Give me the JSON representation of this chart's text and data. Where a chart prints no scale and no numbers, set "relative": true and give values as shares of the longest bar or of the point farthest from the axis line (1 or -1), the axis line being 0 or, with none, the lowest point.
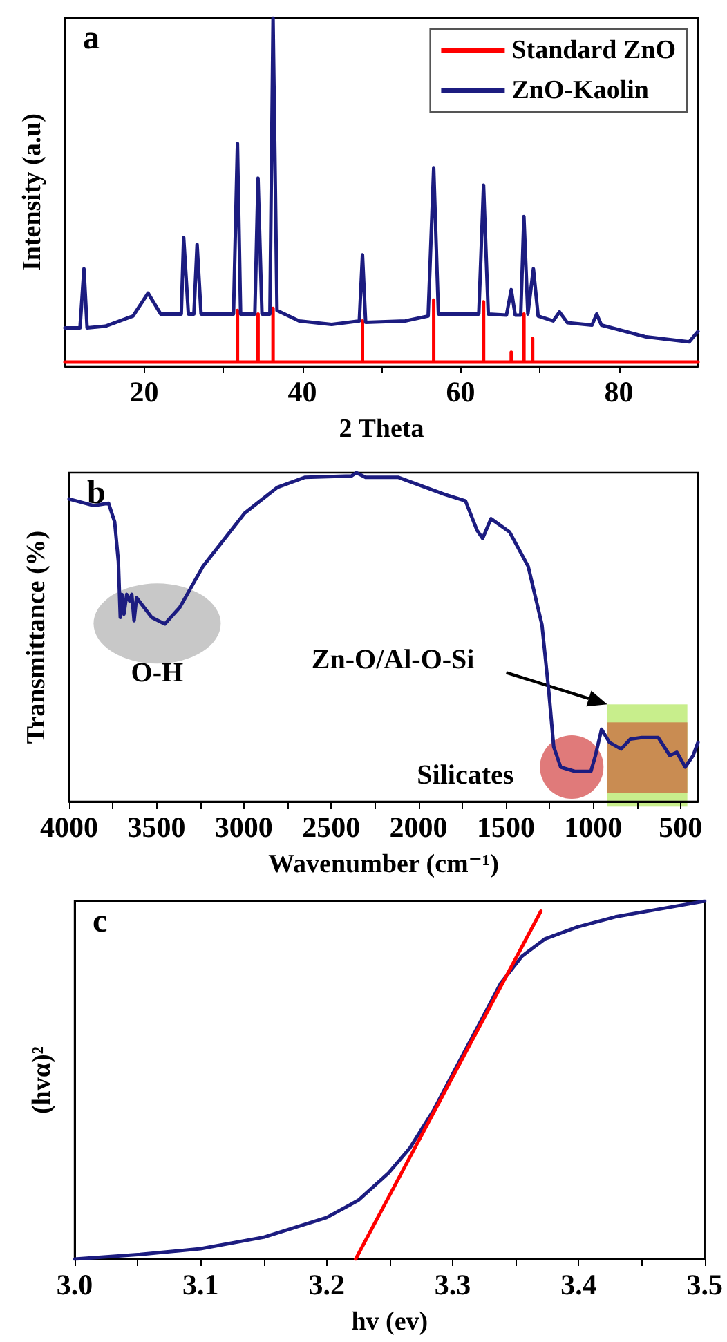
{
  "chart_data": [
    {
      "type": "line",
      "title": "a",
      "xlabel": "2 Theta",
      "ylabel": "Intensity (a.u)",
      "relative": true,
      "marker": "none",
      "legend": "top right",
      "xlim": [
        10,
        90
      ],
      "xticks": [
        {
          "value": 20,
          "label": "20"
        },
        {
          "value": 30,
          "label": null
        },
        {
          "value": 40,
          "label": "40"
        },
        {
          "value": 50,
          "label": null
        },
        {
          "value": 60,
          "label": "60"
        },
        {
          "value": 70,
          "label": null
        },
        {
          "value": 80,
          "label": "80"
        }
      ],
      "series": [
        {
          "name": "Standard ZnO",
          "color": "#ff0000",
          "x": [
            10,
            31.8,
            31.8,
            31.8,
            34.4,
            34.4,
            34.4,
            36.3,
            36.3,
            36.3,
            47.6,
            47.6,
            47.6,
            56.6,
            56.6,
            56.6,
            62.9,
            62.9,
            62.9,
            66.4,
            66.4,
            66.4,
            68.0,
            68.0,
            68.0,
            69.1,
            69.1,
            69.1,
            90
          ],
          "values": [
            0.012,
            0.012,
            0.16,
            0.012,
            0.012,
            0.15,
            0.012,
            0.012,
            0.166,
            0.012,
            0.012,
            0.13,
            0.012,
            0.012,
            0.19,
            0.012,
            0.012,
            0.185,
            0.012,
            0.012,
            0.04,
            0.012,
            0.012,
            0.15,
            0.012,
            0.012,
            0.08,
            0.012,
            0.012
          ]
        },
        {
          "name": "ZnO-Kaolin",
          "color": "#1c1c80",
          "x": [
            10,
            11.9,
            12.4,
            12.8,
            15.1,
            18.6,
            20.5,
            22.1,
            24.7,
            25.0,
            25.6,
            26.3,
            26.7,
            27.2,
            31.3,
            31.8,
            32.2,
            34.0,
            34.4,
            34.9,
            35.9,
            36.3,
            36.8,
            39.6,
            43.7,
            47.2,
            47.6,
            48.0,
            53.0,
            55.9,
            56.6,
            57.2,
            62.3,
            62.9,
            63.5,
            65.8,
            66.4,
            66.9,
            67.6,
            68.0,
            68.5,
            69.2,
            69.8,
            71.7,
            72.5,
            73.5,
            76.6,
            77.2,
            77.8,
            83.3,
            88.9,
            90
          ],
          "values": [
            0.11,
            0.11,
            0.28,
            0.11,
            0.115,
            0.144,
            0.21,
            0.15,
            0.15,
            0.37,
            0.15,
            0.15,
            0.35,
            0.15,
            0.15,
            0.64,
            0.15,
            0.15,
            0.54,
            0.15,
            0.15,
            1.0,
            0.16,
            0.13,
            0.12,
            0.13,
            0.32,
            0.126,
            0.13,
            0.144,
            0.57,
            0.15,
            0.15,
            0.52,
            0.15,
            0.147,
            0.22,
            0.147,
            0.147,
            0.43,
            0.15,
            0.28,
            0.144,
            0.13,
            0.156,
            0.125,
            0.118,
            0.15,
            0.118,
            0.085,
            0.07,
            0.1
          ]
        }
      ]
    },
    {
      "type": "line",
      "title": "b",
      "xlabel": "Wavenumber (cm⁻¹)",
      "ylabel": "Transmittance (%)",
      "relative": true,
      "marker": "none",
      "xlim": [
        4000,
        400
      ],
      "xticks": [
        4000,
        {
          "value": 3750,
          "label": null
        },
        3500,
        {
          "value": 3250,
          "label": null
        },
        3000,
        {
          "value": 2750,
          "label": null
        },
        2500,
        {
          "value": 2250,
          "label": null
        },
        2000,
        {
          "value": 1750,
          "label": null
        },
        1500,
        {
          "value": 1250,
          "label": null
        },
        1000,
        {
          "value": 750,
          "label": null
        },
        500
      ],
      "annotations": [
        "O-H",
        "Silicates",
        "Zn-O/Al-O-Si"
      ],
      "series": [
        {
          "color": "#1c1c80",
          "x": [
            4000,
            3859,
            3774,
            3739,
            3718,
            3707,
            3697,
            3686,
            3670,
            3654,
            3641,
            3628,
            3614,
            3527,
            3452,
            3367,
            3234,
            2995,
            2809,
            2649,
            2383,
            2356,
            2303,
            2117,
            1851,
            1731,
            1665,
            1633,
            1585,
            1479,
            1372,
            1293,
            1253,
            1226,
            1186,
            1106,
            1013,
            987,
            952,
            907,
            840,
            787,
            721,
            628,
            561,
            521,
            473,
            428,
            400
          ],
          "values": [
            0.92,
            0.9,
            0.907,
            0.85,
            0.73,
            0.56,
            0.63,
            0.57,
            0.63,
            0.61,
            0.63,
            0.55,
            0.62,
            0.56,
            0.54,
            0.59,
            0.715,
            0.877,
            0.955,
            0.986,
            0.99,
            1.0,
            0.986,
            0.986,
            0.934,
            0.914,
            0.825,
            0.8,
            0.86,
            0.82,
            0.715,
            0.537,
            0.33,
            0.167,
            0.105,
            0.092,
            0.092,
            0.14,
            0.22,
            0.18,
            0.16,
            0.19,
            0.195,
            0.195,
            0.14,
            0.15,
            0.105,
            0.14,
            0.18
          ]
        }
      ]
    },
    {
      "type": "line",
      "title": "c",
      "xlabel": "hv (ev)",
      "ylabel": "(hvα)²",
      "relative": true,
      "marker": "none",
      "xlim": [
        3.0,
        3.5
      ],
      "xticks": [
        {
          "value": 3.0,
          "label": "3.0"
        },
        {
          "value": 3.05,
          "label": null
        },
        3.1,
        {
          "value": 3.15,
          "label": null
        },
        3.2,
        {
          "value": 3.25,
          "label": null
        },
        3.3,
        {
          "value": 3.35,
          "label": null
        },
        3.4,
        {
          "value": 3.45,
          "label": null
        },
        3.5
      ],
      "series": [
        {
          "color": "#1c1c80",
          "x": [
            3.0,
            3.052,
            3.1,
            3.15,
            3.2,
            3.225,
            3.249,
            3.266,
            3.285,
            3.301,
            3.32,
            3.338,
            3.355,
            3.373,
            3.399,
            3.429,
            3.466,
            3.5
          ],
          "values": [
            0,
            0.013,
            0.029,
            0.061,
            0.116,
            0.164,
            0.24,
            0.31,
            0.417,
            0.524,
            0.65,
            0.77,
            0.846,
            0.894,
            0.928,
            0.956,
            0.979,
            1.0
          ]
        },
        {
          "color": "#ff0000",
          "x": [
            3.223,
            3.37
          ],
          "values": [
            0,
            0.972
          ]
        }
      ]
    }
  ]
}
